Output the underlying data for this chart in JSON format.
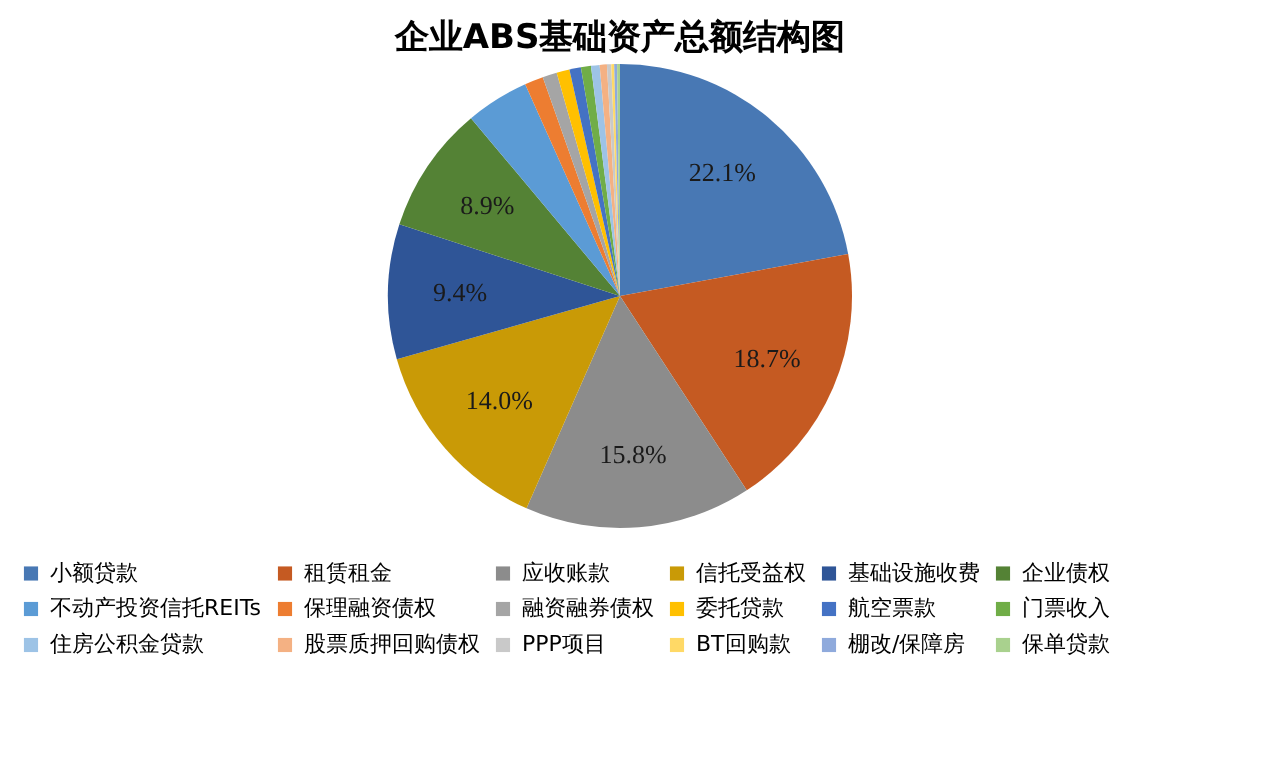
{
  "chart_data": {
    "type": "pie",
    "title": "企业ABS基础资产总额结构图",
    "categories": [
      "小额贷款",
      "租赁租金",
      "应收账款",
      "信托受益权",
      "基础设施收费",
      "企业债权",
      "不动产投资信托REITs",
      "保理融资债权",
      "融资融券债权",
      "委托贷款",
      "航空票款",
      "门票收入",
      "住房公积金贷款",
      "股票质押回购债权",
      "PPP项目",
      "BT回购款",
      "棚改/保障房",
      "保单贷款"
    ],
    "values": [
      22.1,
      18.7,
      15.8,
      14.0,
      9.4,
      8.9,
      4.4,
      1.3,
      1.0,
      0.9,
      0.8,
      0.7,
      0.6,
      0.5,
      0.3,
      0.2,
      0.2,
      0.2
    ],
    "value_labels": [
      "22.1%",
      "18.7%",
      "15.8%",
      "14.0%",
      "9.4%",
      "8.9%",
      null,
      null,
      null,
      null,
      null,
      null,
      null,
      null,
      null,
      null,
      null,
      null
    ],
    "colors": [
      "#4878b4",
      "#c55a22",
      "#8c8c8c",
      "#c99a06",
      "#2f5597",
      "#548235",
      "#5b9bd5",
      "#ed7d31",
      "#a5a5a5",
      "#ffc000",
      "#4472c4",
      "#70ad47",
      "#9dc3e6",
      "#f4b183",
      "#c9c9c9",
      "#ffd966",
      "#8faadc",
      "#a9d18e"
    ],
    "legend": "bottom"
  }
}
